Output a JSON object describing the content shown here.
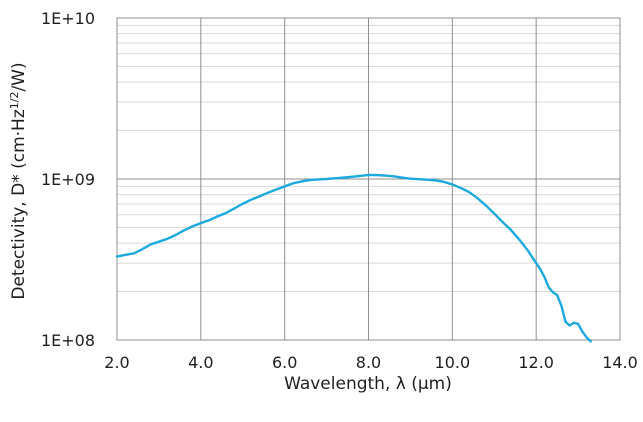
{
  "chart_data": {
    "type": "line",
    "title": "",
    "xlabel": "Wavelength, λ (μm)",
    "ylabel": "Detectivity, D* (cm·Hz",
    "ylabel_superscript": "1/2",
    "ylabel_suffix": "/W)",
    "x_ticks": [
      "2.0",
      "4.0",
      "6.0",
      "8.0",
      "10.0",
      "12.0",
      "14.0"
    ],
    "y_ticks": [
      "1E+08",
      "1E+09",
      "1E+10"
    ],
    "xlim": [
      2,
      14
    ],
    "ylim": [
      100000000,
      10000000000
    ],
    "y_scale": "log",
    "grid": true,
    "legend": "none",
    "series": [
      {
        "color": "#1ba9df",
        "x": [
          2.0,
          2.2,
          2.4,
          2.6,
          2.8,
          3.0,
          3.2,
          3.4,
          3.6,
          3.8,
          4.0,
          4.2,
          4.4,
          4.6,
          4.8,
          5.0,
          5.2,
          5.4,
          5.6,
          5.8,
          6.0,
          6.2,
          6.4,
          6.6,
          6.8,
          7.0,
          7.2,
          7.4,
          7.6,
          7.8,
          8.0,
          8.2,
          8.4,
          8.6,
          8.8,
          9.0,
          9.2,
          9.4,
          9.6,
          9.8,
          10.0,
          10.2,
          10.4,
          10.6,
          10.8,
          11.0,
          11.2,
          11.4,
          11.6,
          11.8,
          12.0,
          12.1,
          12.2,
          12.3,
          12.4,
          12.5,
          12.6,
          12.7,
          12.8,
          12.9,
          13.0,
          13.1,
          13.2,
          13.3
        ],
        "y": [
          330000000,
          338000000,
          345000000,
          366000000,
          392000000,
          408000000,
          425000000,
          449000000,
          480000000,
          508000000,
          532000000,
          555000000,
          586000000,
          615000000,
          656000000,
          702000000,
          744000000,
          780000000,
          822000000,
          860000000,
          900000000,
          940000000,
          965000000,
          985000000,
          993000000,
          1000000000,
          1010000000,
          1020000000,
          1032000000,
          1045000000,
          1060000000,
          1058000000,
          1050000000,
          1040000000,
          1020000000,
          1005000000,
          998000000,
          990000000,
          980000000,
          960000000,
          925000000,
          880000000,
          830000000,
          760000000,
          685000000,
          610000000,
          540000000,
          482000000,
          420000000,
          360000000,
          300000000,
          275000000,
          245000000,
          212000000,
          198000000,
          190000000,
          164000000,
          130000000,
          123000000,
          128000000,
          126000000,
          113000000,
          104000000,
          98000000
        ]
      }
    ]
  }
}
